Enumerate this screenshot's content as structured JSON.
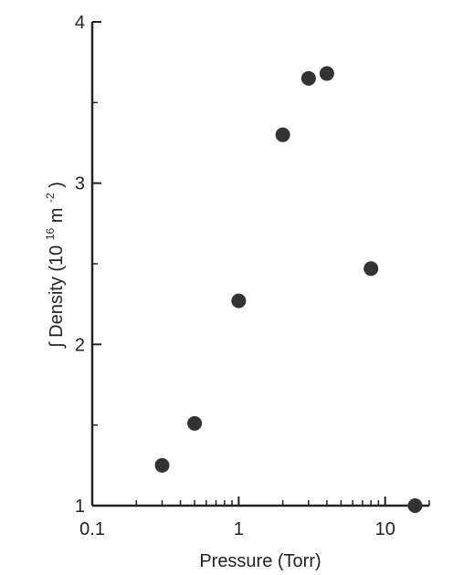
{
  "chart_data": {
    "type": "scatter",
    "xlabel": "Pressure (Torr)",
    "ylabel": {
      "integral_sign": "∫",
      "prefix": "Density (10",
      "exp1": "16",
      "mid": " m",
      "exp2": "-2",
      "suffix": ")"
    },
    "x_scale": "log",
    "xlim": [
      0.1,
      20
    ],
    "ylim": [
      1,
      4
    ],
    "x_ticks": [
      0.1,
      1,
      10
    ],
    "x_tick_labels": [
      "0.1",
      "1",
      "10"
    ],
    "y_ticks": [
      1,
      2,
      3,
      4
    ],
    "y_tick_labels": [
      "1",
      "2",
      "3",
      "4"
    ],
    "grid": false,
    "series": [
      {
        "points": [
          {
            "x": 0.3,
            "y": 1.25
          },
          {
            "x": 0.5,
            "y": 1.51
          },
          {
            "x": 1.0,
            "y": 2.27
          },
          {
            "x": 2.0,
            "y": 3.3
          },
          {
            "x": 3.0,
            "y": 3.65
          },
          {
            "x": 4.0,
            "y": 3.68
          },
          {
            "x": 8.0,
            "y": 2.47
          },
          {
            "x": 16.0,
            "y": 1.0
          }
        ],
        "color": "#333333"
      }
    ]
  }
}
